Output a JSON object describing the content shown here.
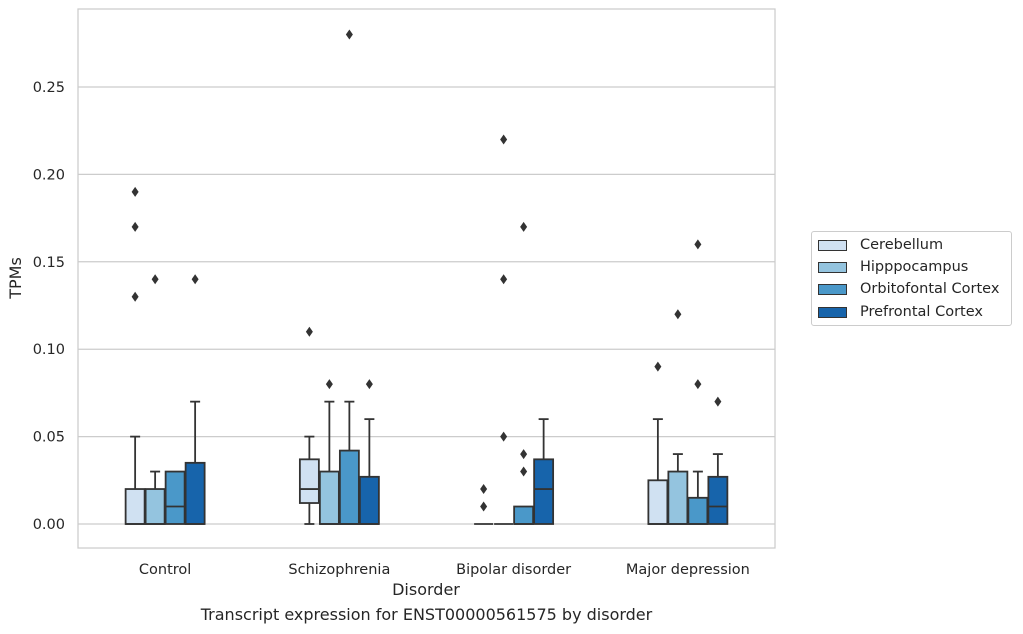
{
  "caption": "Transcript expression for ENST00000561575 by disorder",
  "chart_data": {
    "type": "box",
    "xlabel": "Disorder",
    "ylabel": "TPMs",
    "ylim": [
      -0.013,
      0.295
    ],
    "yticks": [
      0.0,
      0.05,
      0.1,
      0.15,
      0.2,
      0.25
    ],
    "ytick_labels": [
      "0.00",
      "0.05",
      "0.10",
      "0.15",
      "0.20",
      "0.25"
    ],
    "grid": "horizontal",
    "legend_position": "right",
    "categories": [
      "Control",
      "Schizophrenia",
      "Bipolar disorder",
      "Major depression"
    ],
    "series": [
      {
        "name": "Cerebellum",
        "color": "#d0e1f2",
        "boxes": [
          {
            "whislo": 0.0,
            "q1": 0.0,
            "med": 0.0,
            "q3": 0.02,
            "whishi": 0.05,
            "fliers": [
              0.13,
              0.17,
              0.19
            ]
          },
          {
            "whislo": 0.0,
            "q1": 0.012,
            "med": 0.02,
            "q3": 0.037,
            "whishi": 0.05,
            "fliers": [
              0.11
            ]
          },
          {
            "whislo": 0.0,
            "q1": 0.0,
            "med": 0.0,
            "q3": 0.0,
            "whishi": 0.0,
            "fliers": [
              0.01,
              0.02
            ]
          },
          {
            "whislo": 0.0,
            "q1": 0.0,
            "med": 0.0,
            "q3": 0.025,
            "whishi": 0.06,
            "fliers": [
              0.09
            ]
          }
        ]
      },
      {
        "name": "Hipppocampus",
        "color": "#94c4df",
        "boxes": [
          {
            "whislo": 0.0,
            "q1": 0.0,
            "med": 0.0,
            "q3": 0.02,
            "whishi": 0.03,
            "fliers": [
              0.14
            ]
          },
          {
            "whislo": 0.0,
            "q1": 0.0,
            "med": 0.0,
            "q3": 0.03,
            "whishi": 0.07,
            "fliers": [
              0.08
            ]
          },
          {
            "whislo": 0.0,
            "q1": 0.0,
            "med": 0.0,
            "q3": 0.0,
            "whishi": 0.0,
            "fliers": [
              0.05,
              0.14,
              0.22
            ]
          },
          {
            "whislo": 0.0,
            "q1": 0.0,
            "med": 0.0,
            "q3": 0.03,
            "whishi": 0.04,
            "fliers": [
              0.12
            ]
          }
        ]
      },
      {
        "name": "Orbitofontal Cortex",
        "color": "#4a98c9",
        "boxes": [
          {
            "whislo": 0.0,
            "q1": 0.0,
            "med": 0.01,
            "q3": 0.03,
            "whishi": 0.03,
            "fliers": []
          },
          {
            "whislo": 0.0,
            "q1": 0.0,
            "med": 0.0,
            "q3": 0.042,
            "whishi": 0.07,
            "fliers": [
              0.28
            ]
          },
          {
            "whislo": 0.0,
            "q1": 0.0,
            "med": 0.0,
            "q3": 0.01,
            "whishi": 0.01,
            "fliers": [
              0.03,
              0.04,
              0.17
            ]
          },
          {
            "whislo": 0.0,
            "q1": 0.0,
            "med": 0.0,
            "q3": 0.015,
            "whishi": 0.03,
            "fliers": [
              0.08,
              0.16
            ]
          }
        ]
      },
      {
        "name": "Prefrontal Cortex",
        "color": "#1764ab",
        "boxes": [
          {
            "whislo": 0.0,
            "q1": 0.0,
            "med": 0.0,
            "q3": 0.035,
            "whishi": 0.07,
            "fliers": [
              0.14
            ]
          },
          {
            "whislo": 0.0,
            "q1": 0.0,
            "med": 0.0,
            "q3": 0.027,
            "whishi": 0.06,
            "fliers": [
              0.08
            ]
          },
          {
            "whislo": 0.0,
            "q1": 0.0,
            "med": 0.02,
            "q3": 0.037,
            "whishi": 0.06,
            "fliers": []
          },
          {
            "whislo": 0.0,
            "q1": 0.0,
            "med": 0.01,
            "q3": 0.027,
            "whishi": 0.04,
            "fliers": [
              0.07
            ]
          }
        ]
      }
    ]
  }
}
